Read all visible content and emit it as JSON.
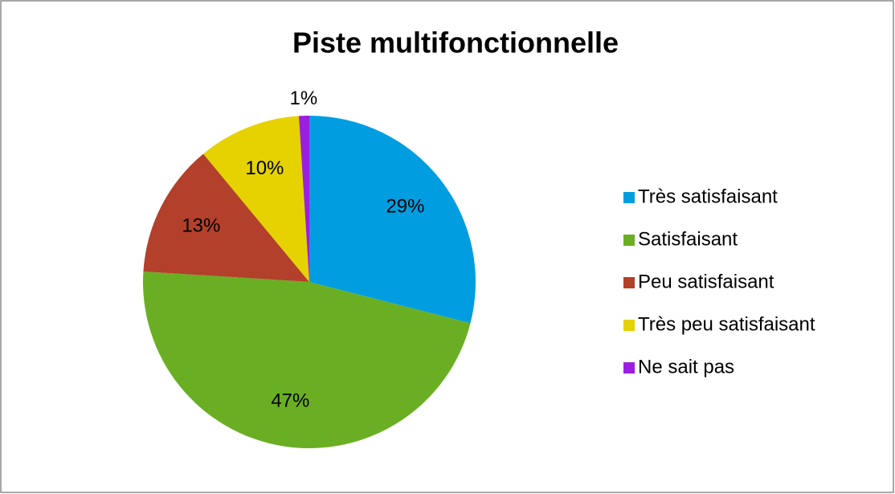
{
  "chart_data": {
    "type": "pie",
    "title": "Piste multifonctionnelle",
    "categories": [
      "Très satisfaisant",
      "Satisfaisant",
      "Peu satisfaisant",
      "Très peu satisfaisant",
      "Ne sait pas"
    ],
    "values": [
      29,
      47,
      13,
      10,
      1
    ],
    "value_labels": [
      "29%",
      "47%",
      "13%",
      "10%",
      "1%"
    ],
    "colors": [
      "#009ee0",
      "#6aaf23",
      "#b3402a",
      "#e5d200",
      "#9b1fe0"
    ],
    "legend": "right"
  }
}
